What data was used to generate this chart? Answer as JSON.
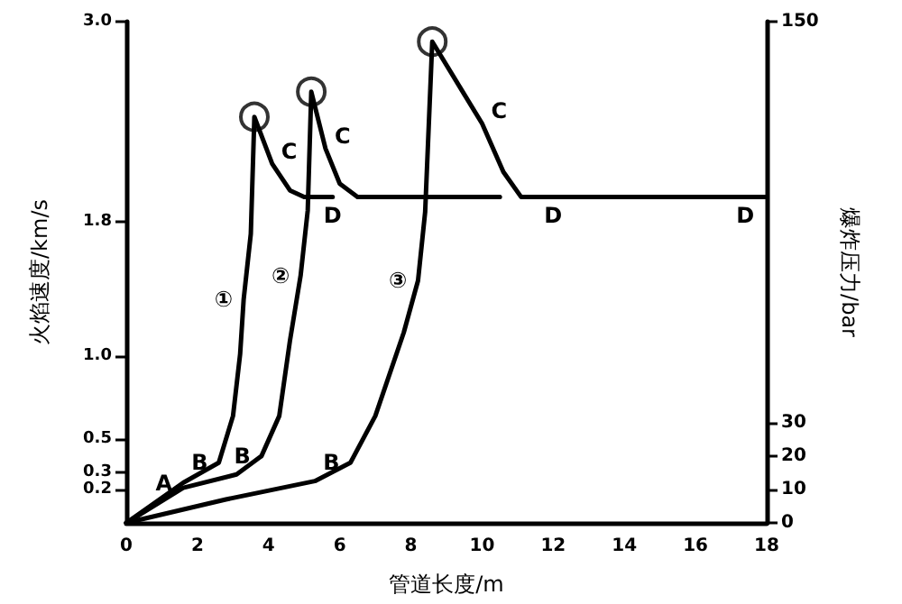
{
  "chart_data": {
    "type": "line",
    "xlabel": "管道长度/m",
    "ylabel": "火焰速度/km/s",
    "y2label": "爆炸压力/bar",
    "xlim": [
      0,
      18
    ],
    "xticks": [
      0,
      2,
      4,
      6,
      8,
      10,
      12,
      14,
      16,
      18
    ],
    "ylim": [
      0,
      3.0
    ],
    "yticks": [
      0.2,
      0.3,
      0.5,
      {
        "value": 1.0,
        "label": "1.0"
      },
      1.8,
      {
        "value": 3.0,
        "label": "3.0"
      }
    ],
    "y2lim": [
      0,
      150
    ],
    "y2ticks": [
      0,
      10,
      20,
      30,
      150
    ],
    "grid": false,
    "marker": "none",
    "line_style": "solid",
    "series": [
      {
        "color": "#000000",
        "x": [
          0,
          1.6,
          2.6,
          3.0,
          3.2,
          3.3,
          3.5,
          3.6,
          4.1,
          4.6,
          5.0,
          5.8
        ],
        "values": [
          0,
          0.24,
          0.36,
          0.64,
          1.01,
          1.34,
          1.73,
          2.43,
          2.15,
          1.99,
          1.95,
          1.95
        ]
      },
      {
        "color": "#000000",
        "x": [
          0,
          1.6,
          3.1,
          3.8,
          4.3,
          4.6,
          4.9,
          5.1,
          5.2,
          5.6,
          6.0,
          6.5,
          10.5
        ],
        "values": [
          0,
          0.21,
          0.29,
          0.4,
          0.64,
          1.09,
          1.48,
          1.87,
          2.58,
          2.24,
          2.03,
          1.95,
          1.95
        ]
      },
      {
        "color": "#000000",
        "x": [
          0,
          2.8,
          5.3,
          6.3,
          7.0,
          7.8,
          8.2,
          8.4,
          8.6,
          10.0,
          10.6,
          11.1,
          18
        ],
        "values": [
          0,
          0.14,
          0.25,
          0.36,
          0.64,
          1.14,
          1.45,
          1.86,
          2.88,
          2.39,
          2.1,
          1.95,
          1.95
        ]
      },
      {
        "type": "scatter",
        "marker": "circle",
        "color": "#000000",
        "x": [
          3.6,
          5.2,
          8.6
        ],
        "values": [
          2.43,
          2.58,
          2.88
        ]
      }
    ],
    "annotations": [
      {
        "text": "①",
        "x": 3.3,
        "y": 1.34
      },
      {
        "text": "②",
        "x": 4.9,
        "y": 1.48
      },
      {
        "text": "③",
        "x": 8.2,
        "y": 1.45
      },
      {
        "text": "A",
        "x": 1.6,
        "y": 0.24
      },
      {
        "text": "B",
        "x": 2.6,
        "y": 0.36
      },
      {
        "text": "B",
        "x": 3.8,
        "y": 0.4
      },
      {
        "text": "B",
        "x": 6.3,
        "y": 0.36
      },
      {
        "text": "C",
        "x": 4.1,
        "y": 2.15
      },
      {
        "text": "C",
        "x": 5.6,
        "y": 2.24
      },
      {
        "text": "C",
        "x": 10.0,
        "y": 2.39
      },
      {
        "text": "D",
        "x": 5.8,
        "y": 1.95
      },
      {
        "text": "D",
        "x": 12.0,
        "y": 1.95
      },
      {
        "text": "D",
        "x": 17.4,
        "y": 1.95
      }
    ]
  }
}
